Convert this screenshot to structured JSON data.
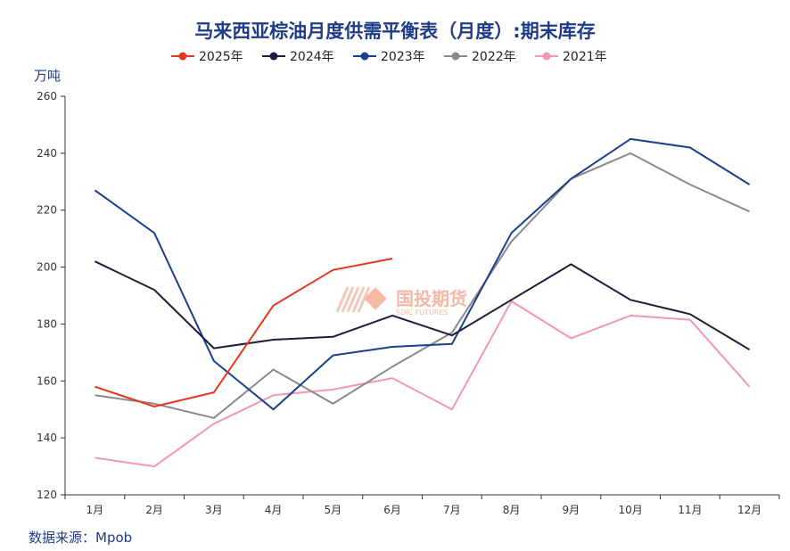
{
  "chart_data": {
    "type": "line",
    "title": "马来西亚棕油月度供需平衡表（月度）:期末库存",
    "ylabel": "万吨",
    "xlabel": "",
    "source": "数据来源：Mpob",
    "ylim": [
      120,
      260
    ],
    "yticks": [
      120,
      140,
      160,
      180,
      200,
      220,
      240,
      260
    ],
    "categories": [
      "1月",
      "2月",
      "3月",
      "4月",
      "5月",
      "6月",
      "7月",
      "8月",
      "9月",
      "10月",
      "11月",
      "12月"
    ],
    "legend_position": "top-center",
    "grid": false,
    "series": [
      {
        "name": "2025年",
        "color": "#e8361e",
        "values": [
          158,
          151,
          156,
          186.5,
          199,
          203,
          null,
          null,
          null,
          null,
          null,
          null
        ]
      },
      {
        "name": "2024年",
        "color": "#1c1e3c",
        "values": [
          202,
          192,
          171.5,
          174.5,
          175.5,
          183,
          176,
          188.5,
          201,
          188.5,
          183.5,
          171
        ]
      },
      {
        "name": "2023年",
        "color": "#1a3f8f",
        "values": [
          227,
          212,
          167,
          150,
          169,
          172,
          173,
          212,
          231,
          245,
          242,
          229
        ]
      },
      {
        "name": "2022年",
        "color": "#8a8a8a",
        "values": [
          155,
          152,
          147,
          164,
          152,
          165,
          177,
          209,
          231,
          240,
          229,
          219.5
        ]
      },
      {
        "name": "2021年",
        "color": "#f497b1",
        "values": [
          133,
          130,
          145,
          155,
          157,
          161,
          150,
          188,
          175,
          183,
          181.5,
          158
        ]
      }
    ],
    "watermark": {
      "text": "国投期货",
      "subtext": "SDIC FUTURES"
    }
  }
}
